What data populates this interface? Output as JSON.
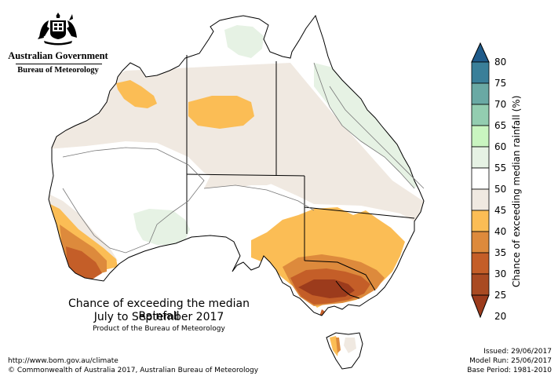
{
  "header": {
    "government": "Australian Government",
    "bureau": "Bureau of Meteorology",
    "emblem_icon": "commonwealth-coat-of-arms-icon"
  },
  "map": {
    "title_line1": "Chance of exceeding the median Rainfall",
    "title_line2": "July to September 2017",
    "product_note": "Product of the Bureau of Meteorology",
    "url": "http://www.bom.gov.au/climate",
    "copyright": "© Commonwealth of Australia 2017, Australian Bureau of Meteorology",
    "issued": "Issued: 29/06/2017",
    "model_run": "Model Run: 25/06/2017",
    "base_period": "Base Period: 1981-2010"
  },
  "legend": {
    "label": "Chance of exceeding median rainfall (%)",
    "ticks": [
      "80",
      "75",
      "70",
      "65",
      "60",
      "55",
      "50",
      "45",
      "40",
      "35",
      "30",
      "25",
      "20"
    ],
    "colors": {
      "above_75": "#1f5b8a",
      "70_75": "#3a7f99",
      "65_70": "#6aa9a4",
      "60_65": "#93cdb0",
      "55_60": "#c9f5c0",
      "50_55": "#e6f2e4",
      "45_50": "#ffffff",
      "40_45": "#f0e9e1",
      "35_40": "#fbbd55",
      "30_35": "#dd8a3c",
      "25_30": "#c45e28",
      "below_25": "#9c3b1c"
    }
  }
}
